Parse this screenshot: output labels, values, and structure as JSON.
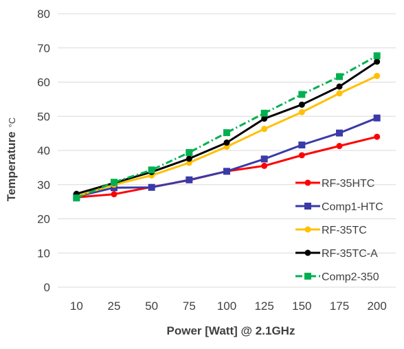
{
  "chart_data": {
    "type": "line",
    "xlabel": "Power [Watt] @ 2.1GHz",
    "ylabel": "Temperature",
    "ylabel_unit": "°C",
    "categories": [
      "10",
      "25",
      "50",
      "75",
      "100",
      "125",
      "150",
      "175",
      "200"
    ],
    "ylim": [
      0,
      80
    ],
    "yticks": [
      0,
      10,
      20,
      30,
      40,
      50,
      60,
      70,
      80
    ],
    "grid": true,
    "legend_position": "bottom-right",
    "series": [
      {
        "name": "RF-35HTC",
        "color": "#ff0000",
        "marker": "circle",
        "dash": "solid",
        "values": [
          26.3,
          27.2,
          29.3,
          31.3,
          33.9,
          35.5,
          38.6,
          41.3,
          44.0
        ]
      },
      {
        "name": "Comp1-HTC",
        "color": "#3a3aa8",
        "marker": "square",
        "dash": "solid",
        "values": [
          26.5,
          29.1,
          29.2,
          31.4,
          33.9,
          37.5,
          41.6,
          45.1,
          49.5
        ]
      },
      {
        "name": "RF-35TC",
        "color": "#ffc000",
        "marker": "circle",
        "dash": "solid",
        "values": [
          26.6,
          30.0,
          32.7,
          36.4,
          41.1,
          46.3,
          51.2,
          56.7,
          61.8
        ]
      },
      {
        "name": "RF-35TC-A",
        "color": "#000000",
        "marker": "circle",
        "dash": "solid",
        "values": [
          27.3,
          30.5,
          33.7,
          37.6,
          42.3,
          49.3,
          53.4,
          58.7,
          66.0
        ]
      },
      {
        "name": "Comp2-350",
        "color": "#00b050",
        "marker": "square",
        "dash": "dashdot",
        "values": [
          26.1,
          30.7,
          34.3,
          39.4,
          45.2,
          50.9,
          56.4,
          61.6,
          67.7
        ]
      }
    ]
  }
}
